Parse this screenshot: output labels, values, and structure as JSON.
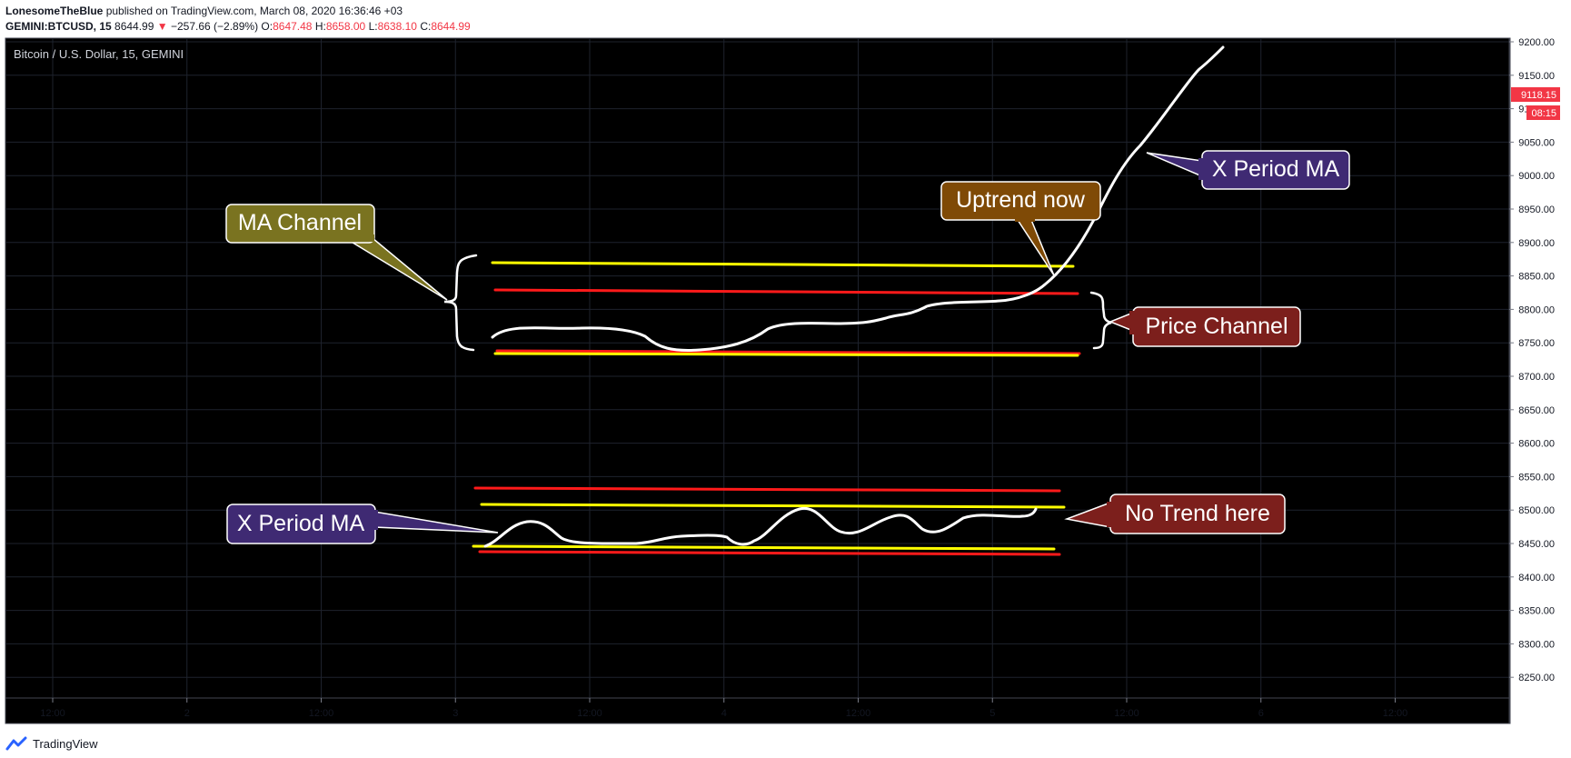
{
  "header": {
    "author": "LonesomeTheBlue",
    "published": "published on TradingView.com, March 08, 2020 16:36:46 +03",
    "symbol": "GEMINI:BTCUSD, 15",
    "last": "8644.99",
    "change": "−257.66 (−2.89%)",
    "o_label": "O:",
    "o_val": "8647.48",
    "h_label": "H:",
    "h_val": "8658.00",
    "l_label": "L:",
    "l_val": "8638.10",
    "c_label": "C:",
    "c_val": "8644.99"
  },
  "footer": {
    "brand": "TradingView"
  },
  "chart_data": {
    "type": "line",
    "title": "Bitcoin / U.S. Dollar, 15, GEMINI",
    "background": "#000000",
    "grid": true,
    "ylim": [
      8200,
      9210
    ],
    "y_ticks": [
      "9200.00",
      "9150.00",
      "9100.00",
      "9050.00",
      "9000.00",
      "8950.00",
      "8900.00",
      "8850.00",
      "8800.00",
      "8750.00",
      "8700.00",
      "8650.00",
      "8600.00",
      "8550.00",
      "8500.00",
      "8450.00",
      "8400.00",
      "8350.00",
      "8300.00",
      "8250.00"
    ],
    "x_ticks": [
      "12:00",
      "2",
      "12:00",
      "3",
      "12:00",
      "4",
      "12:00",
      "5",
      "12:00",
      "6",
      "12:00"
    ],
    "last_price": {
      "value": "9118.15",
      "countdown": "08:15",
      "color": "#f23645"
    },
    "annotations": [
      {
        "text": "MA Channel",
        "fill": "#7a7320"
      },
      {
        "text": "Uptrend now",
        "fill": "#7f4a06"
      },
      {
        "text": "X Period MA",
        "fill": "#3f2a73"
      },
      {
        "text": "Price Channel",
        "fill": "#7c1f1c"
      },
      {
        "text": "X Period MA",
        "fill": "#3f2a73"
      },
      {
        "text": "No Trend here",
        "fill": "#7c1f1c"
      }
    ]
  }
}
